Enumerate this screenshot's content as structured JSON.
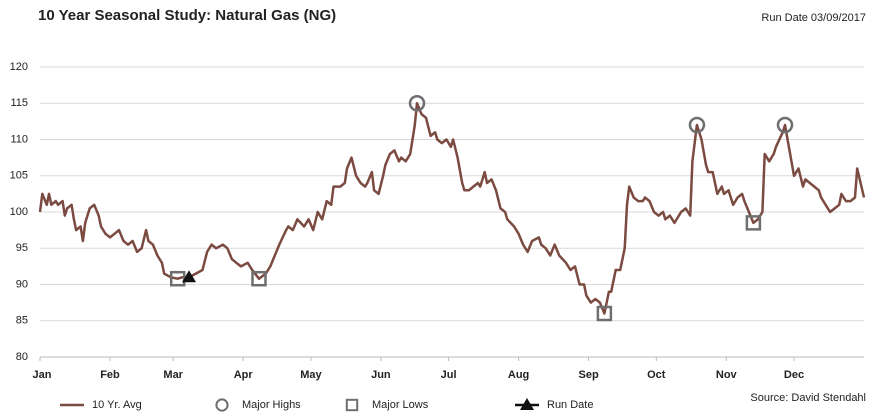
{
  "chart_data": {
    "type": "line",
    "title": "10 Year Seasonal Study: Natural Gas (NG)",
    "subtitle": "Run Date  03/09/2017",
    "source": "Source: David Stendahl",
    "xlim": [
      0,
      365
    ],
    "xticks": [
      {
        "value": 0,
        "label": "Jan"
      },
      {
        "value": 31,
        "label": "Feb"
      },
      {
        "value": 59,
        "label": "Mar"
      },
      {
        "value": 90,
        "label": "Apr"
      },
      {
        "value": 120,
        "label": "May"
      },
      {
        "value": 151,
        "label": "Jun"
      },
      {
        "value": 181,
        "label": "Jul"
      },
      {
        "value": 212,
        "label": "Aug"
      },
      {
        "value": 243,
        "label": "Sep"
      },
      {
        "value": 273,
        "label": "Oct"
      },
      {
        "value": 304,
        "label": "Nov"
      },
      {
        "value": 334,
        "label": "Dec"
      }
    ],
    "ylim": [
      80,
      120
    ],
    "yticks": [
      80,
      85,
      90,
      95,
      100,
      105,
      110,
      115,
      120
    ],
    "grid": true,
    "legend": "bottom",
    "series": [
      {
        "name": "10 Yr. Avg",
        "color": "#7b4a40",
        "marker": "line",
        "x": [
          0,
          1,
          3,
          4,
          5,
          7,
          8,
          10,
          11,
          12,
          14,
          15,
          16,
          18,
          19,
          20,
          22,
          24,
          26,
          27,
          29,
          31,
          33,
          35,
          37,
          39,
          41,
          43,
          45,
          47,
          48,
          50,
          52,
          54,
          55,
          58,
          61,
          63,
          66,
          69,
          72,
          74,
          76,
          78,
          81,
          83,
          85,
          87,
          89,
          92,
          94,
          97,
          100,
          102,
          104,
          106,
          109,
          110,
          112,
          114,
          117,
          119,
          121,
          123,
          125,
          127,
          129,
          130,
          133,
          135,
          136,
          138,
          140,
          142,
          144,
          145,
          147,
          148,
          150,
          152,
          153,
          155,
          157,
          159,
          160,
          162,
          164,
          166,
          167,
          169,
          171,
          173,
          175,
          176,
          178,
          180,
          182,
          183,
          185,
          187,
          188,
          190,
          192,
          194,
          195,
          197,
          198,
          200,
          202,
          204,
          206,
          207,
          210,
          212,
          214,
          216,
          218,
          221,
          222,
          224,
          226,
          228,
          230,
          233,
          235,
          237,
          239,
          241,
          242,
          244,
          246,
          248,
          250,
          252,
          253,
          255,
          257,
          259,
          260,
          261,
          263,
          265,
          267,
          268,
          270,
          272,
          274,
          276,
          277,
          279,
          281,
          283,
          284,
          286,
          288,
          289,
          291,
          293,
          295,
          296,
          298,
          300,
          302,
          303,
          305,
          307,
          309,
          311,
          312,
          314,
          316,
          318,
          320,
          321,
          323,
          325,
          326,
          329,
          330,
          332,
          334,
          336,
          338,
          339,
          341,
          343,
          345,
          346,
          348,
          350,
          352,
          354,
          355,
          357,
          359,
          361,
          362,
          365
        ],
        "values": [
          100,
          102.5,
          101,
          102.5,
          101,
          101.5,
          101,
          101.5,
          99.5,
          100.5,
          101,
          99,
          97.5,
          98,
          96,
          98.5,
          100.5,
          101,
          99.5,
          98,
          97,
          96.5,
          97,
          97.5,
          96,
          95.5,
          96,
          94.5,
          95,
          97.5,
          96,
          95.5,
          94,
          93,
          91.5,
          91,
          90.8,
          91,
          91,
          91.5,
          92,
          94.5,
          95.5,
          95,
          95.5,
          95,
          93.5,
          93,
          92.5,
          93,
          92,
          90.8,
          91.5,
          92.5,
          94,
          95.5,
          97.5,
          98,
          97.5,
          99,
          98,
          99,
          97.5,
          100,
          99,
          101.5,
          101,
          103.5,
          103.5,
          104,
          106,
          107.5,
          105,
          104,
          103.5,
          104,
          105.5,
          103,
          102.5,
          105,
          106.5,
          108,
          108.5,
          107,
          107.5,
          107,
          108,
          112,
          115,
          113.5,
          113,
          110.5,
          111,
          110,
          109.5,
          110,
          109,
          110,
          107.5,
          104,
          103,
          103,
          103.5,
          104,
          103.5,
          105.5,
          104,
          104.5,
          103,
          100.5,
          100,
          99,
          98,
          97,
          95.5,
          94.5,
          96,
          96.5,
          95.5,
          95,
          94,
          95.5,
          94,
          93,
          92,
          92.5,
          90,
          90,
          88.5,
          87.5,
          88,
          87.5,
          86,
          89,
          89,
          92,
          92,
          95,
          101,
          103.5,
          102,
          101.5,
          101.5,
          102,
          101.5,
          100,
          99.5,
          100,
          99,
          99.5,
          98.5,
          99.5,
          100,
          100.5,
          99.5,
          107,
          112,
          110,
          106.5,
          105.5,
          105.5,
          102.5,
          103.5,
          102.5,
          103,
          101,
          102,
          102.5,
          101.5,
          100,
          98.5,
          99,
          100,
          108,
          107,
          108,
          109,
          111,
          112,
          108.5,
          105,
          106,
          103.5,
          104.5,
          104,
          103.5,
          103,
          102,
          101,
          100,
          100.5,
          101,
          102.5,
          101.5,
          101.5,
          102,
          106,
          102
        ]
      },
      {
        "name": "Major Highs",
        "color": "#6e6e6e",
        "marker": "circle",
        "x": [
          167,
          291,
          330
        ],
        "values": [
          115,
          112,
          112
        ]
      },
      {
        "name": "Major Lows",
        "color": "#6e6e6e",
        "marker": "square",
        "x": [
          61,
          97,
          250,
          316
        ],
        "values": [
          90.8,
          90.8,
          86,
          98.5
        ]
      },
      {
        "name": "Run Date",
        "color": "#111111",
        "marker": "triangle",
        "x": [
          66
        ],
        "values": [
          91
        ]
      }
    ]
  }
}
